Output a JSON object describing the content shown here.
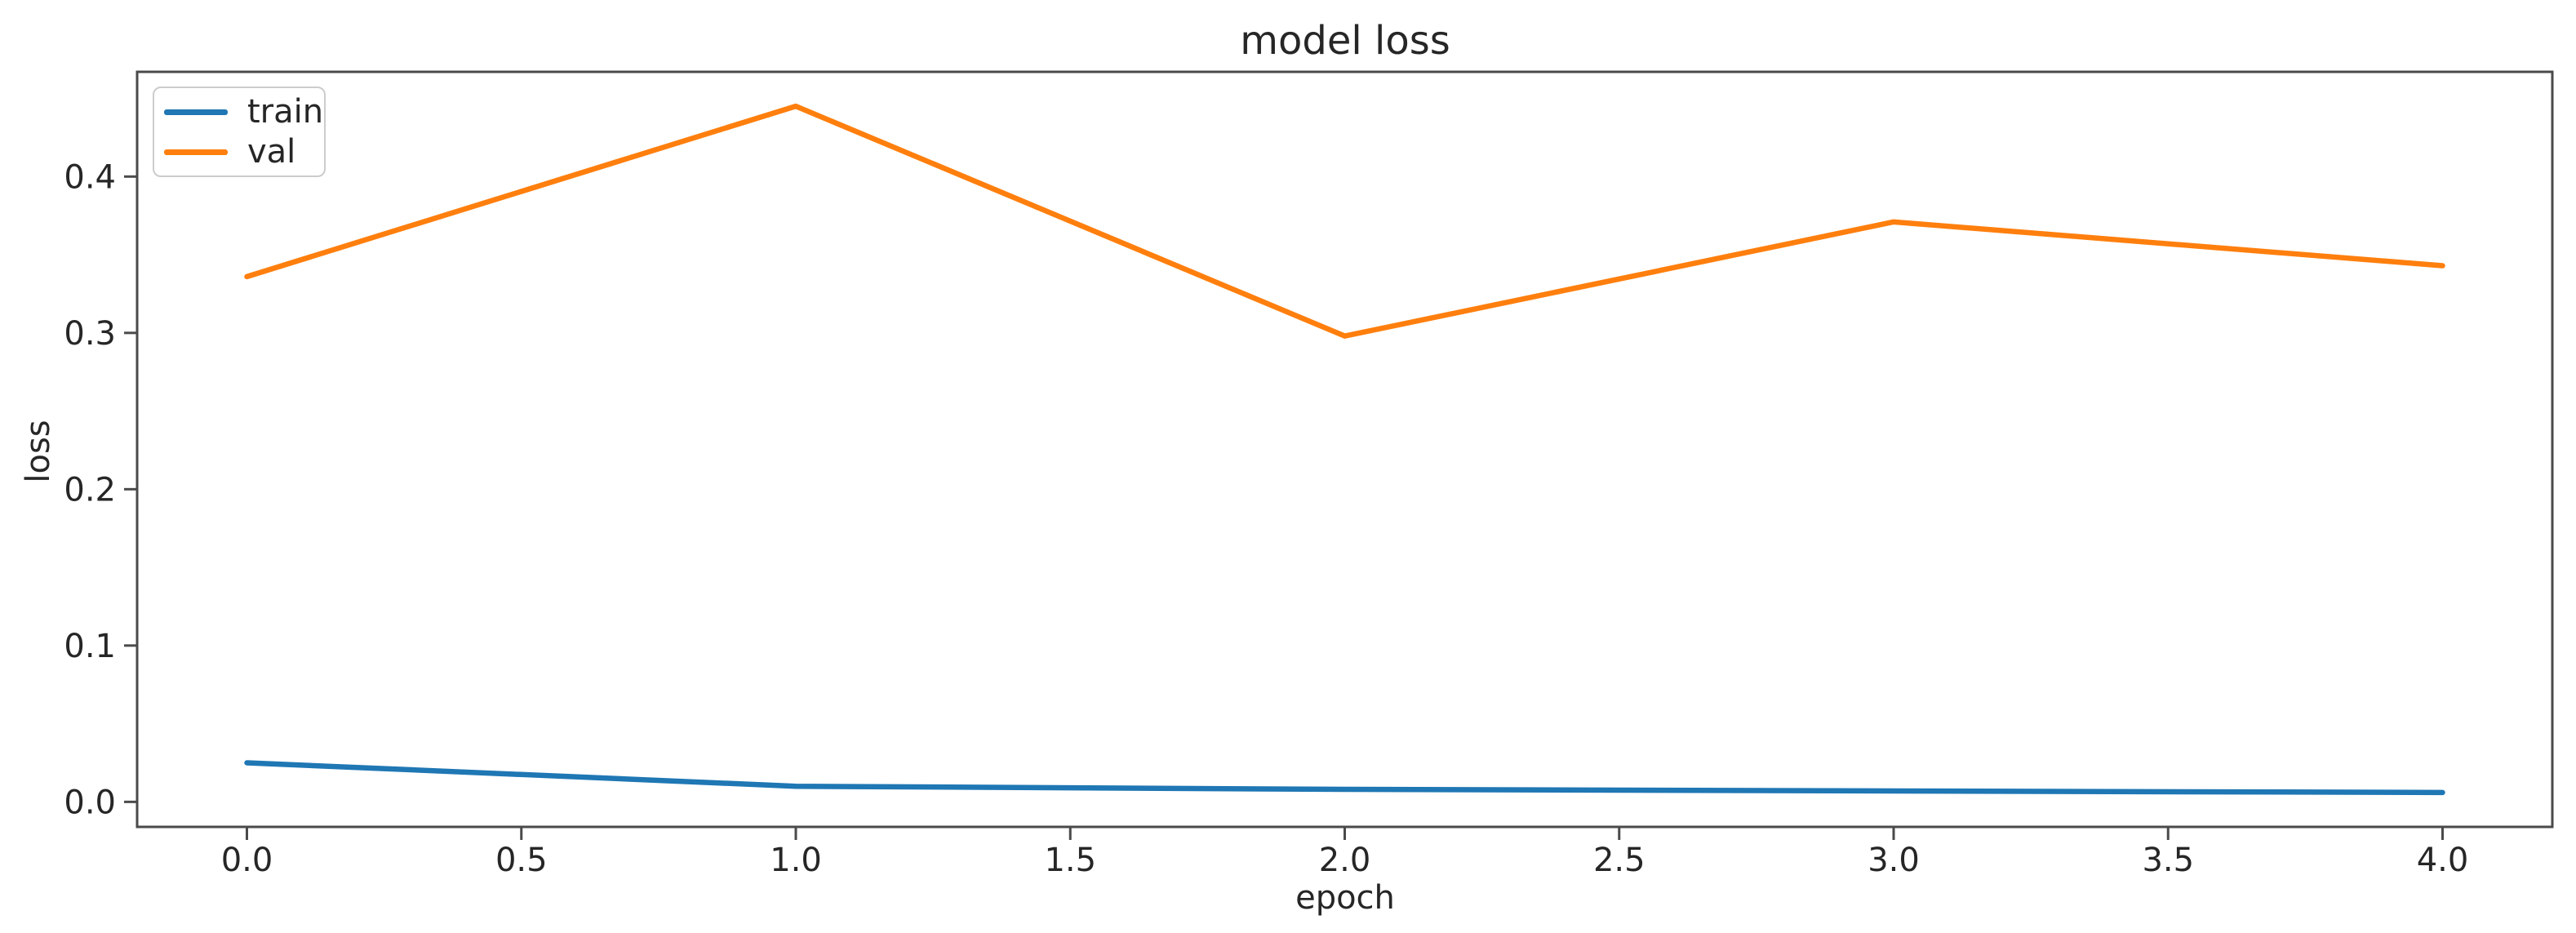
{
  "chart_data": {
    "type": "line",
    "title": "model loss",
    "xlabel": "epoch",
    "ylabel": "loss",
    "x": [
      0,
      1,
      2,
      3,
      4
    ],
    "series": [
      {
        "name": "train",
        "color": "#1f77b4",
        "values": [
          0.025,
          0.01,
          0.008,
          0.007,
          0.006
        ]
      },
      {
        "name": "val",
        "color": "#ff7f0e",
        "values": [
          0.336,
          0.445,
          0.298,
          0.371,
          0.343
        ]
      }
    ],
    "xlim": [
      -0.2,
      4.2
    ],
    "ylim": [
      -0.016,
      0.467
    ],
    "x_ticks": {
      "values": [
        0,
        0.5,
        1,
        1.5,
        2,
        2.5,
        3,
        3.5,
        4
      ],
      "labels": [
        "0.0",
        "0.5",
        "1.0",
        "1.5",
        "2.0",
        "2.5",
        "3.0",
        "3.5",
        "4.0"
      ]
    },
    "y_ticks": {
      "values": [
        0,
        0.1,
        0.2,
        0.3,
        0.4
      ],
      "labels": [
        "0.0",
        "0.1",
        "0.2",
        "0.3",
        "0.4"
      ]
    },
    "legend": {
      "position": "upper left",
      "entries": [
        "train",
        "val"
      ]
    },
    "grid": false,
    "axis_color": "#4a4a4a",
    "text_color": "#262626",
    "background_color": "#ffffff"
  }
}
